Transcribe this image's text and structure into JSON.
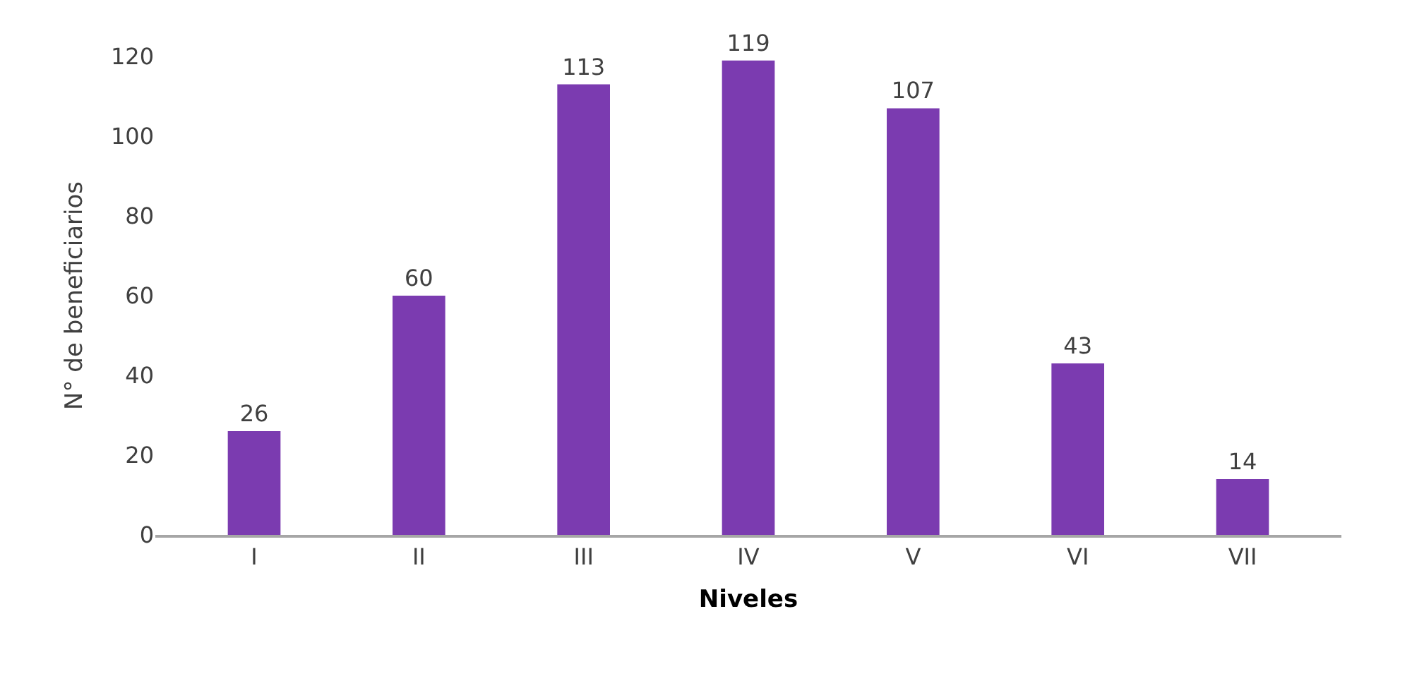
{
  "chart_data": {
    "type": "bar",
    "categories": [
      "I",
      "II",
      "III",
      "IV",
      "V",
      "VI",
      "VII"
    ],
    "values": [
      26,
      60,
      113,
      119,
      107,
      43,
      14
    ],
    "color": "#7b3bb0",
    "xlabel": "Niveles",
    "ylabel": "N° de beneficiarios",
    "ylim": [
      0,
      120
    ],
    "yticks": [
      0,
      20,
      40,
      60,
      80,
      100,
      120
    ],
    "data_labels": true
  }
}
